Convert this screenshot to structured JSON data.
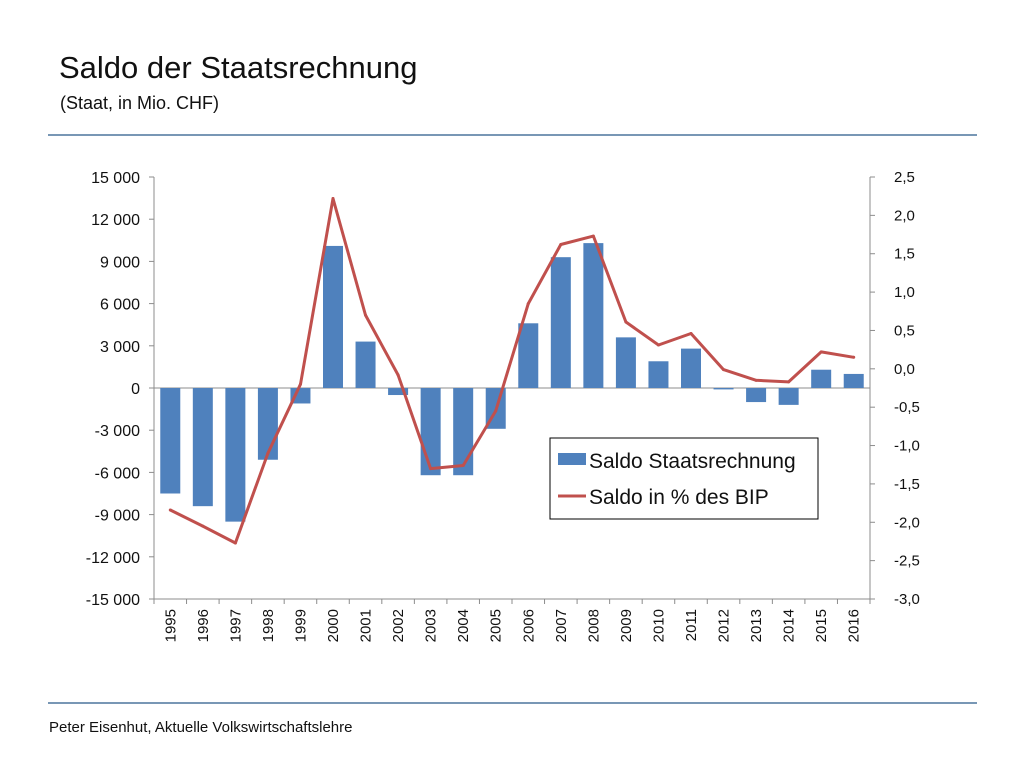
{
  "slide": {
    "title": "Saldo der Staatsrechnung",
    "subtitle": "(Staat, in Mio. CHF)",
    "footer": "Peter Eisenhut, Aktuelle Volkswirtschaftslehre"
  },
  "colors": {
    "bars": "#4f81bd",
    "line": "#c0504d",
    "rule": "#7897b5",
    "grid": "#bfbfbf"
  },
  "chart_data": {
    "type": "bar",
    "title": "Saldo der Staatsrechnung",
    "subtitle": "(Staat, in Mio. CHF)",
    "categories": [
      "1995",
      "1996",
      "1997",
      "1998",
      "1999",
      "2000",
      "2001",
      "2002",
      "2003",
      "2004",
      "2005",
      "2006",
      "2007",
      "2008",
      "2009",
      "2010",
      "2011",
      "2012",
      "2013",
      "2014",
      "2015",
      "2016"
    ],
    "series": [
      {
        "name": "Saldo Staatsrechnung",
        "type": "bar",
        "axis": "left",
        "values": [
          -7500,
          -8400,
          -9500,
          -5100,
          -1100,
          10100,
          3300,
          -500,
          -6200,
          -6200,
          -2900,
          4600,
          9300,
          10300,
          3600,
          1900,
          2800,
          -100,
          -1000,
          -1200,
          1300,
          1000
        ]
      },
      {
        "name": "Saldo in % des BIP",
        "type": "line",
        "axis": "right",
        "values": [
          -1.84,
          -2.05,
          -2.27,
          -1.1,
          -0.2,
          2.22,
          0.7,
          -0.08,
          -1.3,
          -1.26,
          -0.55,
          0.85,
          1.62,
          1.73,
          0.61,
          0.31,
          0.46,
          -0.01,
          -0.15,
          -0.17,
          0.22,
          0.15
        ]
      }
    ],
    "y_left": {
      "min": -15000,
      "max": 15000,
      "ticks": [
        15000,
        12000,
        9000,
        6000,
        3000,
        0,
        -3000,
        -6000,
        -9000,
        -12000,
        -15000
      ],
      "tick_labels": [
        "15 000",
        "12 000",
        "9 000",
        "6 000",
        "3 000",
        "0",
        "-3 000",
        "-6 000",
        "-9 000",
        "-12 000",
        "-15 000"
      ]
    },
    "y_right": {
      "min": -3.0,
      "max": 2.5,
      "ticks": [
        2.5,
        2.0,
        1.5,
        1.0,
        0.5,
        0.0,
        -0.5,
        -1.0,
        -1.5,
        -2.0,
        -2.5,
        -3.0
      ],
      "tick_labels": [
        "2,5",
        "2,0",
        "1,5",
        "1,0",
        "0,5",
        "0,0",
        "-0,5",
        "-1,0",
        "-1,5",
        "-2,0",
        "-2,5",
        "-3,0"
      ]
    },
    "grid": false,
    "legend": {
      "placement": "center-right",
      "entries": [
        "Saldo Staatsrechnung",
        "Saldo in % des BIP"
      ]
    }
  }
}
